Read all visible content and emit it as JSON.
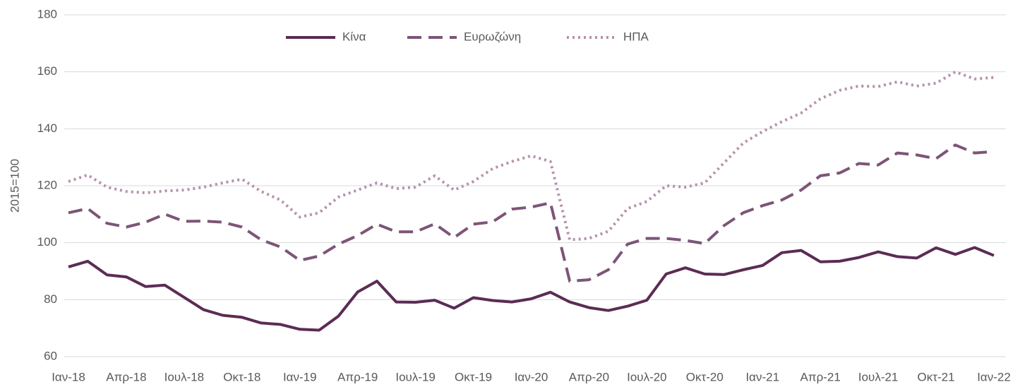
{
  "chart_data": {
    "type": "line",
    "y_label": "2015=100",
    "categories": [
      "Ιαν-18",
      null,
      null,
      "Απρ-18",
      null,
      null,
      "Ιουλ-18",
      null,
      null,
      "Οκτ-18",
      null,
      null,
      "Ιαν-19",
      null,
      null,
      "Απρ-19",
      null,
      null,
      "Ιουλ-19",
      null,
      null,
      "Οκτ-19",
      null,
      null,
      "Ιαν-20",
      null,
      null,
      "Απρ-20",
      null,
      null,
      "Ιουλ-20",
      null,
      null,
      "Οκτ-20",
      null,
      null,
      "Ιαν-21",
      null,
      null,
      "Απρ-21",
      null,
      null,
      "Ιουλ-21",
      null,
      null,
      "Οκτ-21",
      null,
      null,
      "Ιαν-22"
    ],
    "series": [
      {
        "name": "Κίνα",
        "color": "#5b2c54",
        "dash": "solid",
        "values": [
          91.5,
          93.5,
          88.7,
          88,
          84.6,
          85.1,
          80.8,
          76.5,
          74.5,
          73.8,
          71.8,
          71.3,
          69.6,
          69.3,
          74.2,
          82.7,
          86.5,
          79.2,
          79.1,
          79.8,
          77,
          80.7,
          79.7,
          79.2,
          80.3,
          82.6,
          79.2,
          77.2,
          76.2,
          77.7,
          79.8,
          89,
          91.2,
          89,
          88.8,
          90.5,
          92,
          96.5,
          97.3,
          93.3,
          93.5,
          94.8,
          96.8,
          95.1,
          94.6,
          98.2,
          95.9,
          98.3,
          95.5
        ]
      },
      {
        "name": "Ευρωζώνη",
        "color": "#7d5577",
        "dash": "dashed",
        "values": [
          110.5,
          112,
          106.8,
          105.5,
          107.2,
          110,
          107.5,
          107.6,
          107.2,
          105.5,
          101,
          98.5,
          93.8,
          95.3,
          99.5,
          102.5,
          106.5,
          103.8,
          103.8,
          106.6,
          101.8,
          106.5,
          107.3,
          111.8,
          112.5,
          114,
          86.5,
          87,
          90.5,
          99.5,
          101.5,
          101.5,
          100.8,
          99.7,
          106,
          110.5,
          113,
          115,
          118.5,
          123.5,
          124.5,
          127.8,
          127.3,
          131.5,
          130.8,
          129.5,
          134.3,
          131.5,
          132
        ]
      },
      {
        "name": "ΗΠΑ",
        "color": "#b592ad",
        "dash": "dotted",
        "values": [
          121.5,
          123.8,
          119.5,
          118,
          117.5,
          118.2,
          118.5,
          119.5,
          121,
          122.3,
          118,
          115,
          109,
          110.5,
          116,
          118.5,
          121,
          119,
          119.5,
          123.5,
          118.5,
          121.5,
          126,
          128.5,
          130.5,
          128.5,
          101,
          101.5,
          104,
          112,
          114.5,
          120,
          119.5,
          121,
          128,
          135,
          139,
          142.5,
          145.5,
          150.5,
          153.5,
          155,
          154.8,
          156.5,
          155,
          156,
          160,
          157.5,
          158
        ]
      }
    ],
    "ylim": [
      60,
      180
    ],
    "yticks": [
      60,
      80,
      100,
      120,
      140,
      160,
      180
    ],
    "grid": true,
    "legend": "top"
  }
}
